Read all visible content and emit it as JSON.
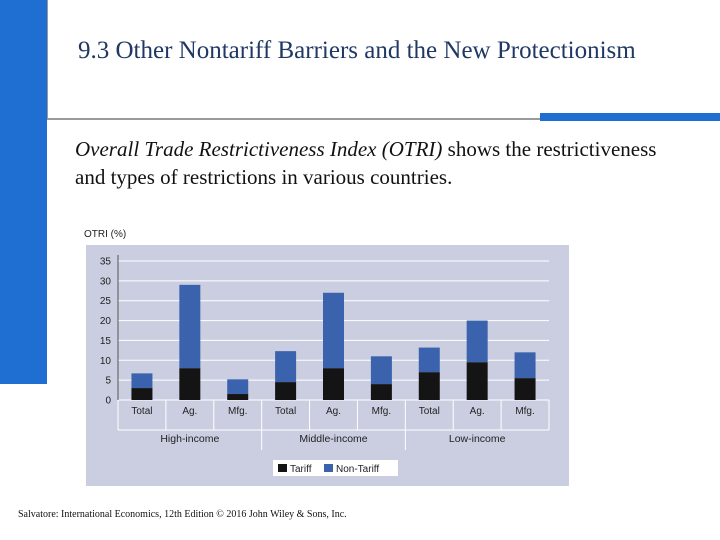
{
  "slide": {
    "title": "9.3  Other Nontariff Barriers and the New Protectionism",
    "body_italic": "Overall Trade Restrictiveness Index (OTRI)",
    "body_rest": " shows the restrictiveness and types of restrictions in various countries.",
    "source": "Salvatore: International Economics, 12th Edition  © 2016 John Wiley & Sons, Inc.",
    "accent_color": "#1e6fd1"
  },
  "chart_data": {
    "type": "bar",
    "stacked": true,
    "ylabel": "OTRI (%)",
    "ylim": [
      0,
      35
    ],
    "yticks": [
      0,
      5,
      10,
      15,
      20,
      25,
      30,
      35
    ],
    "grid": true,
    "categories": [
      "Total",
      "Ag.",
      "Mfg.",
      "Total",
      "Ag.",
      "Mfg.",
      "Total",
      "Ag.",
      "Mfg."
    ],
    "groups": [
      {
        "label": "High-income",
        "span": [
          0,
          2
        ]
      },
      {
        "label": "Middle-income",
        "span": [
          3,
          5
        ]
      },
      {
        "label": "Low-income",
        "span": [
          6,
          8
        ]
      }
    ],
    "series": [
      {
        "name": "Tariff",
        "color": "#141414",
        "values": [
          3,
          8,
          1.5,
          4.5,
          8,
          4,
          7,
          9.5,
          5.5
        ]
      },
      {
        "name": "Non-Tariff",
        "color": "#3a62ad",
        "values": [
          3.7,
          21,
          3.7,
          7.8,
          19,
          7,
          6.2,
          10.5,
          6.5
        ]
      }
    ],
    "legend": "bottom-center",
    "plot_background": "#cbcee0"
  }
}
